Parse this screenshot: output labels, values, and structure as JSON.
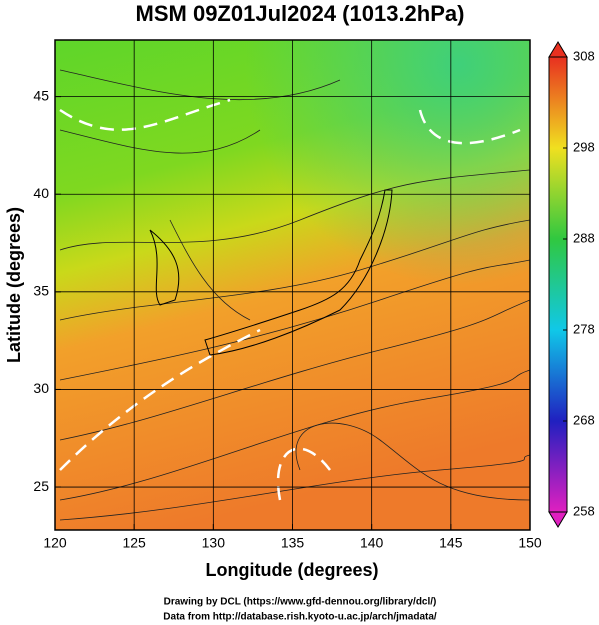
{
  "chart_data": {
    "type": "map",
    "title": "MSM 09Z01Jul2024 (1013.2hPa)",
    "xlabel": "Longitude (degrees)",
    "ylabel": "Latitude  (degrees)",
    "xlim": [
      120,
      150
    ],
    "xticks": [
      120,
      125,
      130,
      135,
      140,
      145,
      150
    ],
    "ylim": [
      22.8,
      47.9
    ],
    "yticks": [
      25,
      30,
      35,
      40,
      45
    ],
    "grid": true,
    "colorbar": {
      "lim": [
        258,
        308
      ],
      "ticks": [
        258,
        268,
        278,
        288,
        298,
        308
      ]
    },
    "footer": [
      "Drawing by DCL (https://www.gfd-dennou.org/library/dcl/)",
      "Data from http://database.rish.kyoto-u.ac.jp/arch/jmadata/"
    ]
  }
}
